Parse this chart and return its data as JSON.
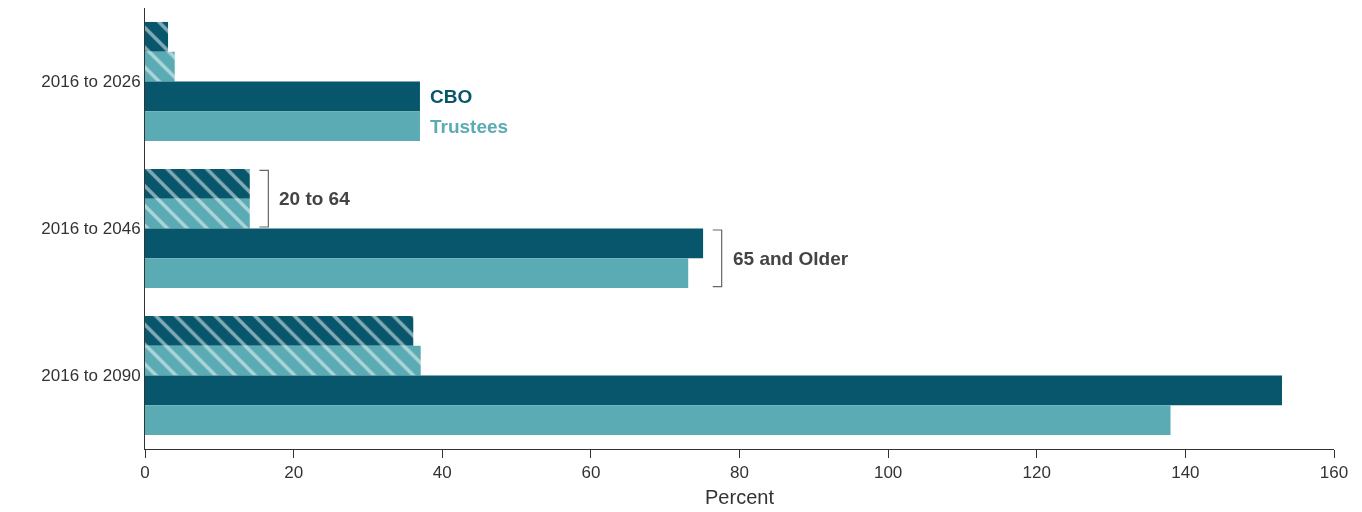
{
  "chart_data": {
    "type": "bar",
    "orientation": "horizontal",
    "categories": [
      "2016 to 2026",
      "2016 to 2046",
      "2016 to 2090"
    ],
    "series": [
      {
        "color": "#07566b",
        "values": [
          3.1,
          14.1,
          36.1
        ]
      },
      {
        "color": "#5aabb3",
        "values": [
          4.0,
          14.1,
          37.1
        ]
      },
      {
        "color": "#07566b",
        "values": [
          37,
          75.1,
          153
        ]
      },
      {
        "color": "#5aabb3",
        "values": [
          37,
          73.1,
          138
        ]
      }
    ],
    "xlabel": "Percent",
    "xlim": [
      0,
      160
    ],
    "xticks": [
      0,
      20,
      40,
      60,
      80,
      100,
      120,
      140,
      160
    ],
    "annotations": [
      {
        "text": "CBO",
        "x": 37,
        "y": "2016 to 2026"
      },
      {
        "text": "Trustees",
        "x": 37,
        "y": "2016 to 2026"
      },
      {
        "text": "20 to 64",
        "x": 14.1,
        "y": "2016 to 2046"
      },
      {
        "text": "65 and Older",
        "x": 75.1,
        "y": "2016 to 2046"
      }
    ]
  }
}
